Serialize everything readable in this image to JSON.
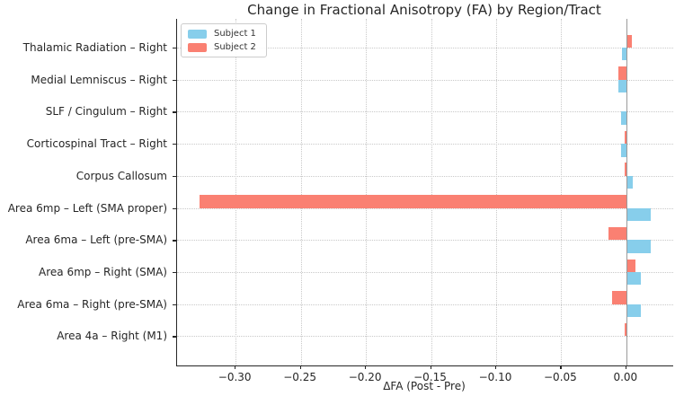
{
  "chart_data": {
    "type": "bar",
    "orientation": "horizontal",
    "title": "Change in Fractional Anisotropy (FA) by Region/Tract",
    "xlabel": "ΔFA (Post - Pre)",
    "categories": [
      "Thalamic Radiation – Right",
      "Medial Lemniscus – Right",
      "SLF / Cingulum – Right",
      "Corticospinal Tract – Right",
      "Corpus Callosum",
      "Area 6mp – Left (SMA proper)",
      "Area 6ma – Left (pre-SMA)",
      "Area 6mp – Right (SMA)",
      "Area 6ma – Right (pre-SMA)",
      "Area 4a – Right (M1)"
    ],
    "series": [
      {
        "name": "Subject 1",
        "color": "#87CEEB",
        "values": [
          -0.003,
          -0.006,
          -0.004,
          -0.004,
          0.005,
          0.019,
          0.019,
          0.011,
          0.011,
          0.001
        ]
      },
      {
        "name": "Subject 2",
        "color": "#FA8072",
        "values": [
          0.004,
          -0.006,
          0.0,
          -0.001,
          -0.001,
          -0.328,
          -0.014,
          0.007,
          -0.011,
          -0.001
        ]
      }
    ],
    "bar_order_top_to_bottom": [
      "Subject 2",
      "Subject 1"
    ],
    "xlim": [
      -0.345,
      0.036
    ],
    "xticks": [
      -0.3,
      -0.25,
      -0.2,
      -0.15,
      -0.1,
      -0.05,
      0.0
    ],
    "xtick_labels": [
      "−0.30",
      "−0.25",
      "−0.20",
      "−0.15",
      "−0.10",
      "−0.05",
      "0.00"
    ],
    "grid": true,
    "grid_style": "dotted",
    "legend_position": "upper left",
    "zero_line_color": "#9a9a9a",
    "axis_color": "#262626"
  }
}
